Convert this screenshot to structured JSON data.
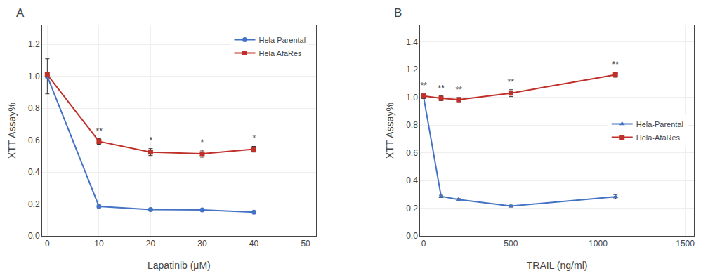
{
  "chart_data": [
    {
      "type": "line",
      "title": "A",
      "xlabel": "Lapatinib (μM)",
      "ylabel": "XTT Assay%",
      "xlim": [
        -1,
        52
      ],
      "ylim": [
        0,
        1.32
      ],
      "xticks": [
        0,
        10,
        20,
        30,
        40,
        50
      ],
      "yticks": [
        {
          "value": 0,
          "label": "0.0"
        },
        0.2,
        0.4,
        0.6,
        0.8,
        {
          "value": 1.0,
          "label": "1.0"
        },
        1.2
      ],
      "legend": "upper right",
      "x": [
        0,
        10,
        20,
        30,
        40
      ],
      "series": [
        {
          "name": "Hela Parental",
          "color": "#4472C4",
          "marker": "circle",
          "values": [
            1.0,
            0.185,
            0.165,
            0.163,
            0.148
          ],
          "errors": [
            0.11,
            0.008,
            0.006,
            0.006,
            0.005
          ]
        },
        {
          "name": "Hela AfaRes",
          "color": "#C0302B",
          "marker": "square",
          "values": [
            1.01,
            0.592,
            0.525,
            0.515,
            0.543
          ],
          "errors": [
            0.005,
            0.018,
            0.022,
            0.022,
            0.018
          ]
        }
      ],
      "annotations": [
        {
          "x": 10,
          "y": 0.618,
          "text": "**"
        },
        {
          "x": 20,
          "y": 0.557,
          "text": "*"
        },
        {
          "x": 30,
          "y": 0.547,
          "text": "*"
        },
        {
          "x": 40,
          "y": 0.571,
          "text": "*"
        }
      ]
    },
    {
      "type": "line",
      "title": "B",
      "xlabel": "TRAIL (ng/ml)",
      "ylabel": "XTT Assay%",
      "xlim": [
        -20,
        1550
      ],
      "ylim": [
        0,
        1.52
      ],
      "xticks": [
        0,
        500,
        1000,
        1500
      ],
      "yticks": [
        {
          "value": 0,
          "label": "0.0"
        },
        0.2,
        0.4,
        0.6,
        0.8,
        {
          "value": 1.0,
          "label": "1.0"
        },
        1.2,
        1.4
      ],
      "legend": "center right",
      "x": [
        0,
        100,
        200,
        500,
        1100
      ],
      "series": [
        {
          "name": "Hela-Parental",
          "color": "#4472C4",
          "marker": "triangle-up",
          "values": [
            1.0,
            0.285,
            0.262,
            0.215,
            0.283
          ],
          "errors": [
            0.008,
            0.008,
            0.007,
            0.007,
            0.015
          ]
        },
        {
          "name": "Hela-AfaRes",
          "color": "#C0302B",
          "marker": "square",
          "values": [
            1.01,
            0.993,
            0.983,
            1.03,
            1.163
          ],
          "errors": [
            0.018,
            0.017,
            0.015,
            0.025,
            0.018
          ]
        }
      ],
      "annotations": [
        {
          "x": 0,
          "y": 1.038,
          "text": "**"
        },
        {
          "x": 100,
          "y": 1.018,
          "text": "**"
        },
        {
          "x": 200,
          "y": 1.006,
          "text": "**"
        },
        {
          "x": 500,
          "y": 1.063,
          "text": "**"
        },
        {
          "x": 1100,
          "y": 1.19,
          "text": "**"
        }
      ]
    }
  ]
}
